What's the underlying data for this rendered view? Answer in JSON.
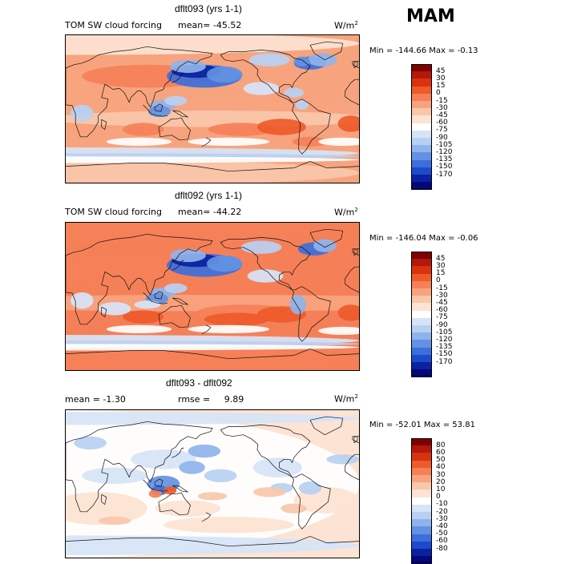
{
  "season": "MAM",
  "units_prefix": "W/m",
  "units_exp": "2",
  "panels": [
    {
      "title": "dflt093 (yrs 1-1)",
      "left_label": "TOM SW cloud forcing",
      "stat_label": "mean=",
      "stat_value": "-45.52",
      "minmax": "Min = -144.66 Max =  -0.13",
      "scale": "scale1",
      "base": "#f7a47e"
    },
    {
      "title": "dflt092 (yrs 1-1)",
      "left_label": "TOM SW cloud forcing",
      "stat_label": "mean=",
      "stat_value": "-44.22",
      "minmax": "Min = -146.04 Max =  -0.06",
      "scale": "scale1",
      "base": "#f58058"
    },
    {
      "title": "dflt093 - dflt092",
      "left_label": "mean =   -1.30",
      "stat_label": "rmse =",
      "stat_value": "9.89",
      "minmax": "Min = -52.01 Max =  53.81",
      "scale": "scale2",
      "base": "#fde3d3"
    }
  ],
  "scales": {
    "scale1": {
      "labels": [
        "45",
        "30",
        "15",
        "0",
        "-15",
        "-30",
        "-45",
        "-60",
        "-75",
        "-90",
        "-105",
        "-120",
        "-135",
        "-150",
        "-170"
      ],
      "colors": [
        "#7f0000",
        "#b2180b",
        "#d8320f",
        "#ee5a2a",
        "#f58058",
        "#f7a47e",
        "#f9c7aa",
        "#fde3d3",
        "#ffffff",
        "#d6e4f7",
        "#b8d0f2",
        "#8fb3ec",
        "#6391e3",
        "#3c6fdb",
        "#1d4acc",
        "#0a22a0",
        "#05087a"
      ]
    },
    "scale2": {
      "labels": [
        "80",
        "60",
        "50",
        "40",
        "30",
        "20",
        "10",
        "0",
        "-10",
        "-20",
        "-30",
        "-40",
        "-50",
        "-60",
        "-80"
      ],
      "colors": [
        "#7f0000",
        "#b2180b",
        "#d8320f",
        "#ee5a2a",
        "#f58058",
        "#f7a47e",
        "#f9c7aa",
        "#fde3d3",
        "#ffffff",
        "#d6e4f7",
        "#b8d0f2",
        "#8fb3ec",
        "#6391e3",
        "#3c6fdb",
        "#1d4acc",
        "#0a22a0",
        "#05087a"
      ]
    }
  },
  "icons": {
    "coastline": "world-coastline-icon"
  }
}
